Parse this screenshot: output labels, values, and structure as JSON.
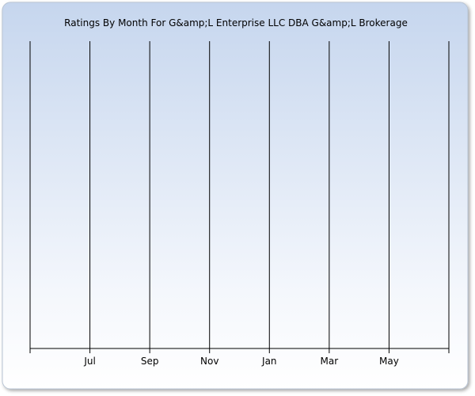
{
  "chart_data": {
    "type": "bar",
    "title": "Ratings By Month For G&amp;L Enterprise LLC DBA G&amp;L Brokerage",
    "categories": [
      null,
      "Jul",
      "Sep",
      "Nov",
      "Jan",
      "Mar",
      "May",
      null
    ],
    "grid": true
  }
}
